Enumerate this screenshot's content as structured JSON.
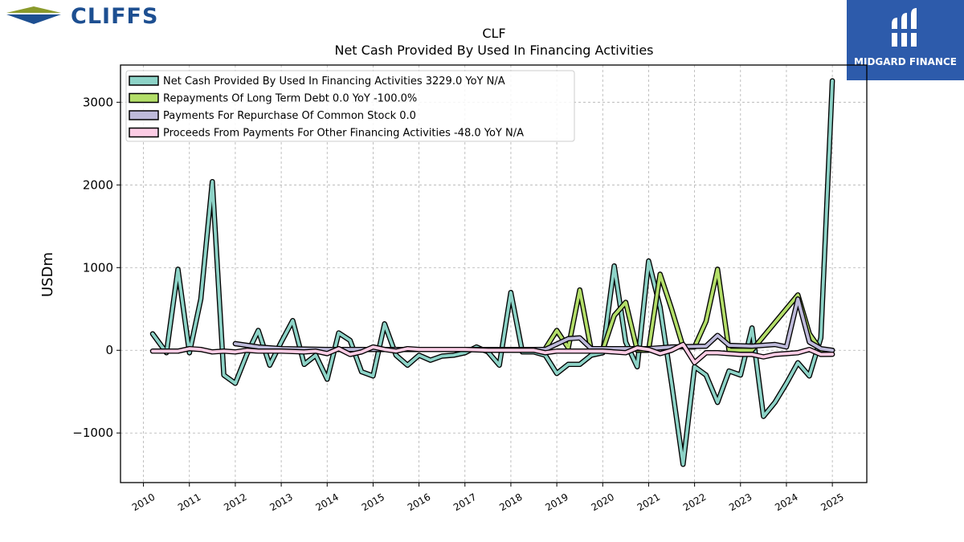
{
  "brand": {
    "left_logo_text": "CLIFFS",
    "right_logo_text": "MIDGARD FINANCE",
    "left_logo_color": "#1d4f91",
    "left_logo_accent": "#8a9a2b",
    "right_logo_bg": "#2d5bab"
  },
  "chart_data": {
    "type": "line",
    "title": "CLF",
    "subtitle": "Net Cash Provided By Used In Financing Activities",
    "ylabel": "USDm",
    "xlabel": "",
    "xlim": [
      2009.5,
      2025.75
    ],
    "ylim": [
      -1600,
      3450
    ],
    "yticks": [
      -1000,
      0,
      1000,
      2000,
      3000
    ],
    "ytick_labels": [
      "−1000",
      "0",
      "1000",
      "2000",
      "3000"
    ],
    "xticks": [
      2010,
      2011,
      2012,
      2013,
      2014,
      2015,
      2016,
      2017,
      2018,
      2019,
      2020,
      2021,
      2022,
      2023,
      2024,
      2025
    ],
    "xtick_labels": [
      "2010",
      "2011",
      "2012",
      "2013",
      "2014",
      "2015",
      "2016",
      "2017",
      "2018",
      "2019",
      "2020",
      "2021",
      "2022",
      "2023",
      "2024",
      "2025"
    ],
    "grid": true,
    "legend_position": "top-left",
    "series": [
      {
        "name": "Net Cash Provided By Used In Financing Activities",
        "legend": "Net Cash Provided By Used In Financing Activities  3229.0 YoY N/A",
        "color": "#8dd3c7",
        "points": [
          [
            2010.2,
            200
          ],
          [
            2010.5,
            -30
          ],
          [
            2010.75,
            980
          ],
          [
            2011.0,
            -30
          ],
          [
            2011.25,
            620
          ],
          [
            2011.5,
            2040
          ],
          [
            2011.75,
            -300
          ],
          [
            2012.0,
            -400
          ],
          [
            2012.25,
            -50
          ],
          [
            2012.5,
            240
          ],
          [
            2012.75,
            -180
          ],
          [
            2013.0,
            100
          ],
          [
            2013.25,
            360
          ],
          [
            2013.5,
            -170
          ],
          [
            2013.75,
            -60
          ],
          [
            2014.0,
            -350
          ],
          [
            2014.25,
            210
          ],
          [
            2014.5,
            120
          ],
          [
            2014.75,
            -260
          ],
          [
            2015.0,
            -310
          ],
          [
            2015.25,
            320
          ],
          [
            2015.5,
            -60
          ],
          [
            2015.75,
            -180
          ],
          [
            2016.0,
            -60
          ],
          [
            2016.25,
            -120
          ],
          [
            2016.5,
            -70
          ],
          [
            2016.75,
            -60
          ],
          [
            2017.0,
            -30
          ],
          [
            2017.25,
            40
          ],
          [
            2017.5,
            -20
          ],
          [
            2017.75,
            -180
          ],
          [
            2018.0,
            700
          ],
          [
            2018.25,
            -20
          ],
          [
            2018.5,
            -20
          ],
          [
            2018.75,
            -60
          ],
          [
            2019.0,
            -280
          ],
          [
            2019.25,
            -170
          ],
          [
            2019.5,
            -170
          ],
          [
            2019.75,
            -60
          ],
          [
            2020.0,
            -30
          ],
          [
            2020.25,
            1020
          ],
          [
            2020.5,
            100
          ],
          [
            2020.75,
            -200
          ],
          [
            2021.0,
            1080
          ],
          [
            2021.25,
            520
          ],
          [
            2021.5,
            -400
          ],
          [
            2021.75,
            -1380
          ],
          [
            2022.0,
            -200
          ],
          [
            2022.25,
            -300
          ],
          [
            2022.5,
            -630
          ],
          [
            2022.75,
            -250
          ],
          [
            2023.0,
            -300
          ],
          [
            2023.25,
            270
          ],
          [
            2023.5,
            -800
          ],
          [
            2023.75,
            -630
          ],
          [
            2024.0,
            -400
          ],
          [
            2024.25,
            -150
          ],
          [
            2024.5,
            -310
          ],
          [
            2024.75,
            150
          ],
          [
            2025.0,
            3260
          ]
        ]
      },
      {
        "name": "Repayments Of Long Term Debt",
        "legend": "Repayments Of Long Term Debt  0.0 YoY -100.0%",
        "color": "#b3de69",
        "points": [
          [
            2018.75,
            20
          ],
          [
            2019.0,
            240
          ],
          [
            2019.25,
            30
          ],
          [
            2019.5,
            730
          ],
          [
            2019.75,
            0
          ],
          [
            2020.0,
            0
          ],
          [
            2020.25,
            420
          ],
          [
            2020.5,
            580
          ],
          [
            2020.75,
            0
          ],
          [
            2021.0,
            0
          ],
          [
            2021.25,
            920
          ],
          [
            2021.5,
            500
          ],
          [
            2021.75,
            40
          ],
          [
            2022.0,
            40
          ],
          [
            2022.25,
            350
          ],
          [
            2022.5,
            980
          ],
          [
            2022.75,
            0
          ],
          [
            2023.0,
            0
          ],
          [
            2023.25,
            0
          ],
          [
            2024.25,
            670
          ],
          [
            2024.5,
            200
          ],
          [
            2024.75,
            0
          ],
          [
            2025.0,
            0
          ]
        ]
      },
      {
        "name": "Payments For Repurchase Of Common Stock",
        "legend": "Payments For Repurchase Of Common Stock  0.0",
        "color": "#bebada",
        "points": [
          [
            2012.0,
            80
          ],
          [
            2012.5,
            40
          ],
          [
            2013.0,
            20
          ],
          [
            2014.0,
            10
          ],
          [
            2018.75,
            10
          ],
          [
            2019.25,
            140
          ],
          [
            2019.5,
            150
          ],
          [
            2019.75,
            20
          ],
          [
            2020.25,
            20
          ],
          [
            2021.0,
            20
          ],
          [
            2021.5,
            40
          ],
          [
            2022.25,
            50
          ],
          [
            2022.5,
            180
          ],
          [
            2022.75,
            60
          ],
          [
            2023.25,
            50
          ],
          [
            2023.75,
            70
          ],
          [
            2024.0,
            40
          ],
          [
            2024.25,
            620
          ],
          [
            2024.5,
            100
          ],
          [
            2024.75,
            20
          ],
          [
            2025.0,
            0
          ]
        ]
      },
      {
        "name": "Proceeds From Payments For Other Financing Activities",
        "legend": "Proceeds From Payments For Other Financing Activities  -48.0 YoY N/A",
        "color": "#fccde5",
        "points": [
          [
            2010.2,
            -10
          ],
          [
            2010.5,
            -10
          ],
          [
            2010.75,
            -10
          ],
          [
            2011.0,
            20
          ],
          [
            2011.25,
            10
          ],
          [
            2011.5,
            -20
          ],
          [
            2011.75,
            -10
          ],
          [
            2012.0,
            -20
          ],
          [
            2012.25,
            0
          ],
          [
            2012.5,
            -10
          ],
          [
            2013.0,
            -10
          ],
          [
            2013.5,
            -20
          ],
          [
            2013.75,
            -10
          ],
          [
            2014.0,
            -40
          ],
          [
            2014.25,
            20
          ],
          [
            2014.5,
            -50
          ],
          [
            2014.75,
            -20
          ],
          [
            2015.0,
            40
          ],
          [
            2015.25,
            10
          ],
          [
            2015.5,
            -10
          ],
          [
            2015.75,
            20
          ],
          [
            2016.0,
            10
          ],
          [
            2016.5,
            10
          ],
          [
            2017.0,
            10
          ],
          [
            2017.5,
            0
          ],
          [
            2018.0,
            0
          ],
          [
            2018.5,
            0
          ],
          [
            2018.75,
            -30
          ],
          [
            2019.0,
            -10
          ],
          [
            2019.5,
            -10
          ],
          [
            2020.0,
            -10
          ],
          [
            2020.5,
            -30
          ],
          [
            2020.75,
            30
          ],
          [
            2021.0,
            10
          ],
          [
            2021.25,
            -40
          ],
          [
            2021.5,
            0
          ],
          [
            2021.75,
            70
          ],
          [
            2022.0,
            -150
          ],
          [
            2022.25,
            -30
          ],
          [
            2022.5,
            -30
          ],
          [
            2022.75,
            -40
          ],
          [
            2023.0,
            -50
          ],
          [
            2023.25,
            -50
          ],
          [
            2023.5,
            -80
          ],
          [
            2023.75,
            -50
          ],
          [
            2024.0,
            -40
          ],
          [
            2024.25,
            -30
          ],
          [
            2024.5,
            10
          ],
          [
            2024.75,
            -50
          ],
          [
            2025.0,
            -48
          ]
        ]
      }
    ]
  }
}
